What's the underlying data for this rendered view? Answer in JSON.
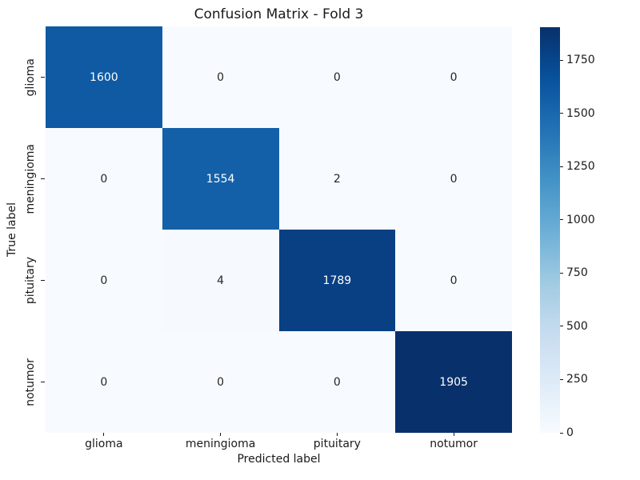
{
  "title": "Confusion Matrix - Fold 3",
  "chart_data": {
    "type": "heatmap",
    "title": "Confusion Matrix - Fold 3",
    "xlabel": "Predicted label",
    "ylabel": "True label",
    "x_categories": [
      "glioma",
      "meningioma",
      "pituitary",
      "notumor"
    ],
    "y_categories": [
      "glioma",
      "meningioma",
      "pituitary",
      "notumor"
    ],
    "matrix": [
      [
        1600,
        0,
        0,
        0
      ],
      [
        0,
        1554,
        2,
        0
      ],
      [
        0,
        4,
        1789,
        0
      ],
      [
        0,
        0,
        0,
        1905
      ]
    ],
    "vmin": 0,
    "vmax": 1905,
    "colormap": "Blues",
    "grid": false,
    "legend_position": "right-colorbar",
    "colorbar_ticks": [
      0,
      250,
      500,
      750,
      1000,
      1250,
      1500,
      1750
    ]
  },
  "style": {
    "background": "#ffffff",
    "text_color": "#1a1a1a",
    "annot_dark_text": "#262626",
    "annot_light_text": "#ffffff",
    "cell_colors": [
      [
        "#0f5aa3",
        "#f7fbff",
        "#f7fbff",
        "#f7fbff"
      ],
      [
        "#f7fbff",
        "#1460a8",
        "#f7fafe",
        "#f7fbff"
      ],
      [
        "#f7fbff",
        "#f6fafe",
        "#084083",
        "#f7fbff"
      ],
      [
        "#f7fbff",
        "#f7fbff",
        "#f7fbff",
        "#08306b"
      ]
    ],
    "colorbar_gradient": [
      "#f7fbff",
      "#deebf7",
      "#c6dbef",
      "#9ecae1",
      "#6baed6",
      "#4292c6",
      "#2171b5",
      "#08519c",
      "#08306b"
    ]
  }
}
